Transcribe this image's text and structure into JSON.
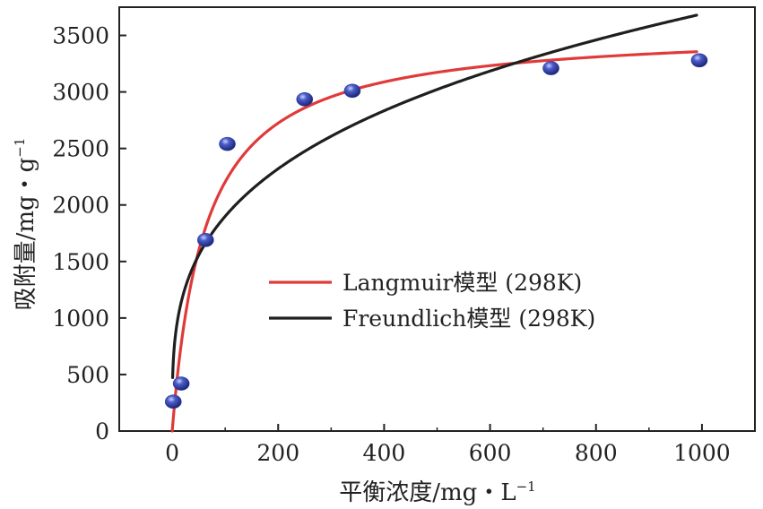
{
  "chart_data": {
    "type": "scatter",
    "xlabel": "平衡浓度/mg・L",
    "xlabel_sup": "−1",
    "ylabel": "吸附量/mg・g",
    "ylabel_sup": "−1",
    "xlim": [
      -100,
      1100
    ],
    "ylim": [
      0,
      3750
    ],
    "xticks": [
      0,
      200,
      400,
      600,
      800,
      1000
    ],
    "yticks": [
      0,
      500,
      1000,
      1500,
      2000,
      2500,
      3000,
      3500
    ],
    "grid": false,
    "legend_position": "center-right",
    "scatter_color": "#2e3f9e",
    "points": [
      {
        "x": 2,
        "y": 260
      },
      {
        "x": 17,
        "y": 420
      },
      {
        "x": 63,
        "y": 1690
      },
      {
        "x": 104,
        "y": 2540
      },
      {
        "x": 250,
        "y": 2935
      },
      {
        "x": 340,
        "y": 3010
      },
      {
        "x": 715,
        "y": 3210
      },
      {
        "x": 995,
        "y": 3280
      }
    ],
    "series": [
      {
        "name": "Langmuir模型 (298K)",
        "color": "#e03a3a",
        "model": "langmuir",
        "params": {
          "qm": 3565,
          "KL": 0.0162
        },
        "x_range": [
          0,
          990
        ]
      },
      {
        "name": "Freundlich模型 (298K)",
        "color": "#1f1f1f",
        "model": "freundlich",
        "params": {
          "KF": 504,
          "n": 3.47
        },
        "x_range": [
          0.8,
          990
        ]
      }
    ]
  }
}
